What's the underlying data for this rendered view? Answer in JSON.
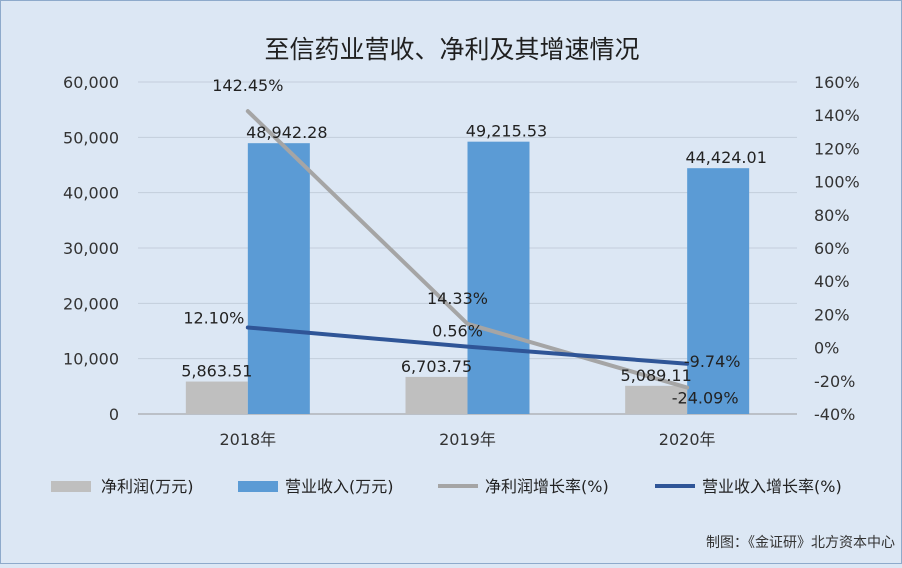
{
  "chart_data": {
    "type": "bar",
    "title": "至信药业营收、净利及其增速情况",
    "categories": [
      "2018年",
      "2019年",
      "2020年"
    ],
    "y_left": {
      "ylim": [
        0,
        60000
      ],
      "ticks": [
        "0",
        "10,000",
        "20,000",
        "30,000",
        "40,000",
        "50,000",
        "60,000"
      ]
    },
    "y_right": {
      "ylim": [
        -40,
        160
      ],
      "ticks": [
        "-40%",
        "-20%",
        "0%",
        "20%",
        "40%",
        "60%",
        "80%",
        "100%",
        "120%",
        "140%",
        "160%"
      ]
    },
    "grid": true,
    "legend_position": "bottom",
    "series": [
      {
        "name": "净利润(万元)",
        "kind": "bar",
        "axis": "left",
        "color": "#bfbfbf",
        "values": [
          5863.51,
          6703.75,
          5089.11
        ],
        "labels": [
          "5,863.51",
          "6,703.75",
          "5,089.11"
        ]
      },
      {
        "name": "营业收入(万元)",
        "kind": "bar",
        "axis": "left",
        "color": "#5b9bd5",
        "values": [
          48942.28,
          49215.53,
          44424.01
        ],
        "labels": [
          "48,942.28",
          "49,215.53",
          "44,424.01"
        ]
      },
      {
        "name": "净利润增长率(%)",
        "kind": "line",
        "axis": "right",
        "color": "#a5a5a5",
        "values": [
          142.45,
          14.33,
          -24.09
        ],
        "labels": [
          "142.45%",
          "14.33%",
          "-24.09%"
        ]
      },
      {
        "name": "营业收入增长率(%)",
        "kind": "line",
        "axis": "right",
        "color": "#2f5597",
        "values": [
          12.1,
          0.56,
          -9.74
        ],
        "labels": [
          "12.10%",
          "0.56%",
          "-9.74%"
        ]
      }
    ]
  },
  "footer": {
    "credit": "制图：《金证研》北方资本中心"
  }
}
